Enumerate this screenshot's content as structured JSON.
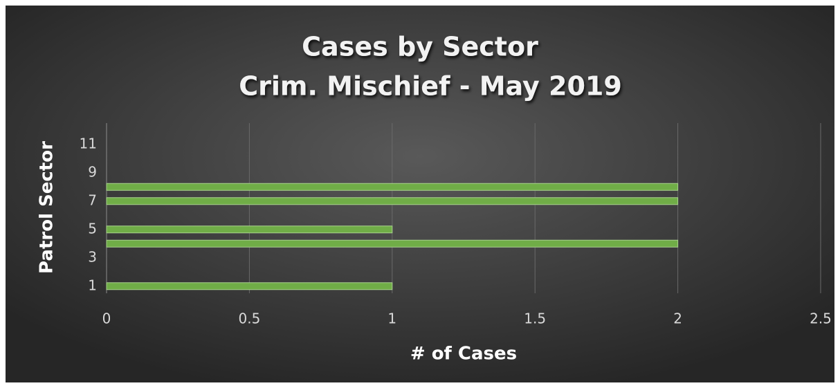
{
  "chart_data": {
    "type": "bar",
    "orientation": "horizontal",
    "title": [
      "Cases by Sector",
      "Crim. Mischief - May 2019"
    ],
    "x_label": "# of Cases",
    "y_label": "Patrol Sector",
    "categories": [
      "1",
      null,
      "3",
      null,
      "5",
      null,
      "7",
      null,
      "9",
      null,
      "11",
      null
    ],
    "values": [
      1,
      0,
      0,
      2,
      1,
      0,
      2,
      2,
      0,
      0,
      0,
      0
    ],
    "color": "#70ad47",
    "xlim": [
      0,
      2.5
    ],
    "xticks": [
      0,
      0.5,
      1,
      1.5,
      2,
      2.5
    ],
    "grid": true
  }
}
